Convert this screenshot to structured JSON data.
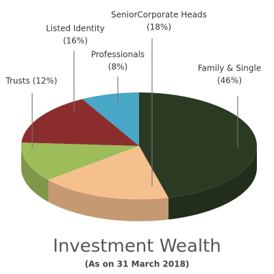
{
  "chart_data": {
    "type": "pie3d",
    "title": "Investment Wealth",
    "subtitle": "(As on 31 March 2018)",
    "categories": [
      "Family & Single",
      "SeniorCorporate Heads",
      "Trusts",
      "Listed Identity",
      "Professionals"
    ],
    "values": [
      46,
      18,
      12,
      16,
      8
    ],
    "value_labels": [
      "(46%)",
      "(18%)",
      "(12%)",
      "(16%)",
      "(8%)"
    ],
    "colors": [
      "#2b3a22",
      "#f6c08e",
      "#9dbd5b",
      "#8b2d2d",
      "#49a7c7"
    ]
  }
}
